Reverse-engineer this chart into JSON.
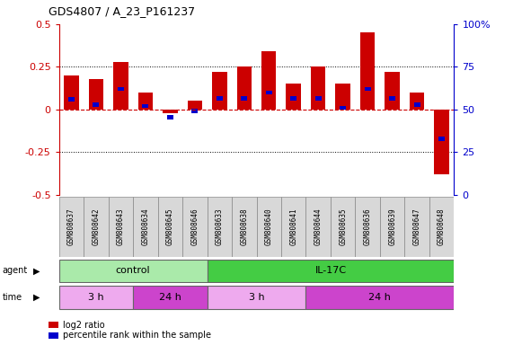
{
  "title": "GDS4807 / A_23_P161237",
  "samples": [
    "GSM808637",
    "GSM808642",
    "GSM808643",
    "GSM808634",
    "GSM808645",
    "GSM808646",
    "GSM808633",
    "GSM808638",
    "GSM808640",
    "GSM808641",
    "GSM808644",
    "GSM808635",
    "GSM808636",
    "GSM808639",
    "GSM808647",
    "GSM808648"
  ],
  "log2_ratio": [
    0.2,
    0.18,
    0.28,
    0.1,
    -0.02,
    0.05,
    0.22,
    0.25,
    0.34,
    0.15,
    0.25,
    0.15,
    0.45,
    0.22,
    0.1,
    -0.38
  ],
  "percentile_y": [
    0.06,
    0.03,
    0.12,
    0.02,
    -0.045,
    -0.01,
    0.065,
    0.065,
    0.1,
    0.065,
    0.065,
    0.01,
    0.12,
    0.065,
    0.03,
    -0.17
  ],
  "bar_color": "#cc0000",
  "blue_color": "#0000cc",
  "agent_groups": [
    {
      "label": "control",
      "start": 0,
      "end": 6,
      "color": "#aaeaaa"
    },
    {
      "label": "IL-17C",
      "start": 6,
      "end": 16,
      "color": "#44cc44"
    }
  ],
  "time_groups": [
    {
      "label": "3 h",
      "start": 0,
      "end": 3,
      "color": "#eeaaee"
    },
    {
      "label": "24 h",
      "start": 3,
      "end": 6,
      "color": "#cc44cc"
    },
    {
      "label": "3 h",
      "start": 6,
      "end": 10,
      "color": "#eeaaee"
    },
    {
      "label": "24 h",
      "start": 10,
      "end": 16,
      "color": "#cc44cc"
    }
  ],
  "ylim": [
    -0.5,
    0.5
  ],
  "yticks_left": [
    -0.5,
    -0.25,
    0,
    0.25,
    0.5
  ],
  "yticks_right_vals": [
    -0.5,
    -0.25,
    0.0,
    0.25,
    0.5
  ],
  "yticks_right_labels": [
    "0",
    "25",
    "50",
    "75",
    "100%"
  ],
  "bg_color": "#ffffff",
  "legend_items": [
    {
      "label": "log2 ratio",
      "color": "#cc0000"
    },
    {
      "label": "percentile rank within the sample",
      "color": "#0000cc"
    }
  ]
}
